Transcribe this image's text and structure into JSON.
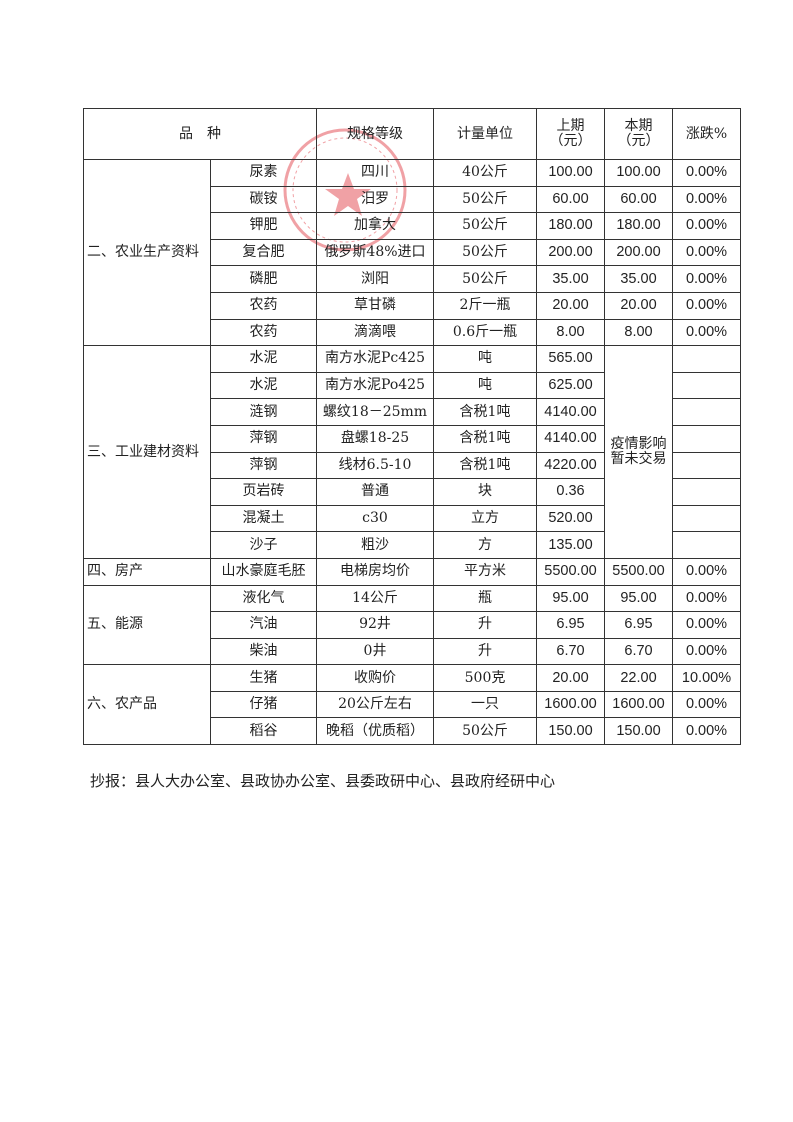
{
  "header": {
    "variety": "品　种",
    "spec": "规格等级",
    "unit": "计量单位",
    "prev": "上期\n（元）",
    "curr": "本期\n（元）",
    "change": "涨跌%"
  },
  "sections": [
    {
      "category": "二、农业生产资料",
      "rows": [
        {
          "item": "尿素",
          "spec": "四川",
          "unit": "40公斤",
          "prev": "100.00",
          "curr": "100.00",
          "change": "0.00%"
        },
        {
          "item": "碳铵",
          "spec": "汨罗",
          "unit": "50公斤",
          "prev": "60.00",
          "curr": "60.00",
          "change": "0.00%"
        },
        {
          "item": "钾肥",
          "spec": "加拿大",
          "unit": "50公斤",
          "prev": "180.00",
          "curr": "180.00",
          "change": "0.00%"
        },
        {
          "item": "复合肥",
          "spec": "俄罗斯48%进口",
          "unit": "50公斤",
          "prev": "200.00",
          "curr": "200.00",
          "change": "0.00%"
        },
        {
          "item": "磷肥",
          "spec": "浏阳",
          "unit": "50公斤",
          "prev": "35.00",
          "curr": "35.00",
          "change": "0.00%"
        },
        {
          "item": "农药",
          "spec": "草甘磷",
          "unit": "2斤一瓶",
          "prev": "20.00",
          "curr": "20.00",
          "change": "0.00%"
        },
        {
          "item": "农药",
          "spec": "滴滴喂",
          "unit": "0.6斤一瓶",
          "prev": "8.00",
          "curr": "8.00",
          "change": "0.00%"
        }
      ]
    },
    {
      "category": "三、工业建材资料",
      "merged_curr": "疫情影响\n暂未交易",
      "rows": [
        {
          "item": "水泥",
          "spec": "南方水泥Pc425",
          "unit": "吨",
          "prev": "565.00"
        },
        {
          "item": "水泥",
          "spec": "南方水泥Po425",
          "unit": "吨",
          "prev": "625.00"
        },
        {
          "item": "涟钢",
          "spec": "螺纹18－25mm",
          "unit": "含税1吨",
          "prev": "4140.00"
        },
        {
          "item": "萍钢",
          "spec": "盘螺18-25",
          "unit": "含税1吨",
          "prev": "4140.00"
        },
        {
          "item": "萍钢",
          "spec": "线材6.5-10",
          "unit": "含税1吨",
          "prev": "4220.00"
        },
        {
          "item": "页岩砖",
          "spec": "普通",
          "unit": "块",
          "prev": "0.36"
        },
        {
          "item": "混凝土",
          "spec": "c30",
          "unit": "立方",
          "prev": "520.00"
        },
        {
          "item": "沙子",
          "spec": "粗沙",
          "unit": "方",
          "prev": "135.00"
        }
      ]
    },
    {
      "category": "四、房产",
      "rows": [
        {
          "item": "山水豪庭毛胚",
          "spec": "电梯房均价",
          "unit": "平方米",
          "prev": "5500.00",
          "curr": "5500.00",
          "change": "0.00%"
        }
      ]
    },
    {
      "category": "五、能源",
      "rows": [
        {
          "item": "液化气",
          "spec": "14公斤",
          "unit": "瓶",
          "prev": "95.00",
          "curr": "95.00",
          "change": "0.00%"
        },
        {
          "item": "汽油",
          "spec": "92井",
          "unit": "升",
          "prev": "6.95",
          "curr": "6.95",
          "change": "0.00%"
        },
        {
          "item": "柴油",
          "spec": "0井",
          "unit": "升",
          "prev": "6.70",
          "curr": "6.70",
          "change": "0.00%"
        }
      ]
    },
    {
      "category": "六、农产品",
      "rows": [
        {
          "item": "生猪",
          "spec": "收购价",
          "unit": "500克",
          "prev": "20.00",
          "curr": "22.00",
          "change": "10.00%"
        },
        {
          "item": "仔猪",
          "spec": "20公斤左右",
          "unit": "一只",
          "prev": "1600.00",
          "curr": "1600.00",
          "change": "0.00%"
        },
        {
          "item": "稻谷",
          "spec": "晚稻（优质稻）",
          "unit": "50公斤",
          "prev": "150.00",
          "curr": "150.00",
          "change": "0.00%"
        }
      ]
    }
  ],
  "footer": "抄报：县人大办公室、县政协办公室、县委政研中心、县政府经研中心",
  "stamp_color": "#e0303a"
}
